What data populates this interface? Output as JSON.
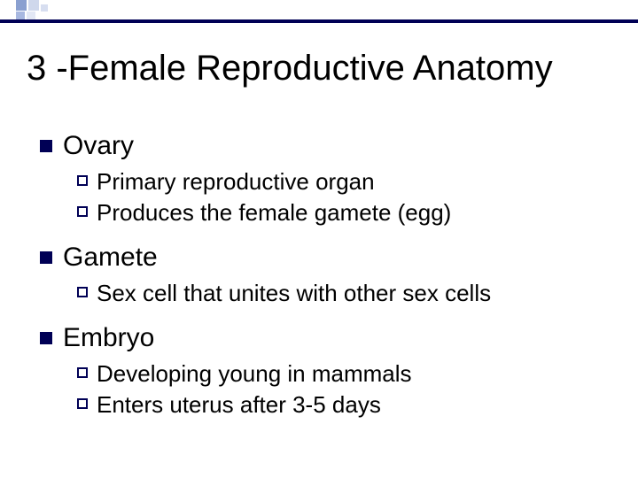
{
  "slide": {
    "title": "3 -Female Reproductive Anatomy",
    "colors": {
      "accent": "#000055",
      "background": "#ffffff",
      "text": "#000000"
    },
    "typography": {
      "title_fontsize": 40,
      "l1_fontsize": 30,
      "l2_fontsize": 26,
      "font_family": "Arial"
    },
    "items": [
      {
        "label": "Ovary",
        "sub": [
          "Primary reproductive organ",
          "Produces the female gamete (egg)"
        ]
      },
      {
        "label": "Gamete",
        "sub": [
          "Sex cell that unites with other sex cells"
        ]
      },
      {
        "label": "Embryo",
        "sub": [
          "Developing young in mammals",
          "Enters uterus after 3-5 days"
        ]
      }
    ]
  }
}
